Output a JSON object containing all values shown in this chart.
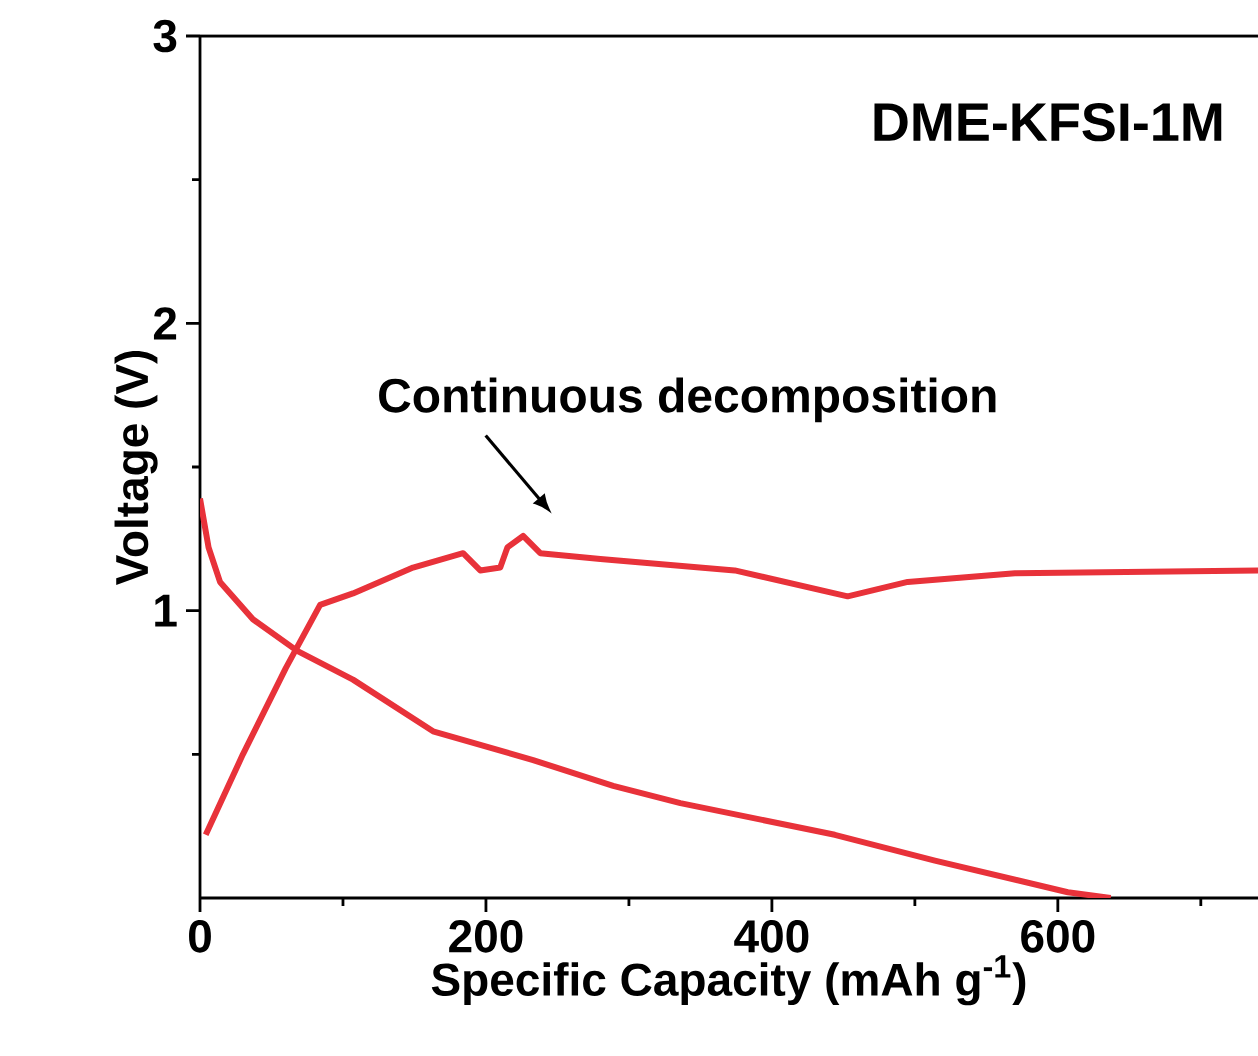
{
  "chart_data": {
    "type": "line",
    "xlabel": "Specific Capacity (mAh g$^{-1}$)",
    "ylabel": "Voltage (V)",
    "xlim": [
      0,
      740
    ],
    "ylim": [
      0,
      3
    ],
    "xticks": [
      0,
      {
        "value": 100,
        "label": null
      },
      200,
      {
        "value": 300,
        "label": null
      },
      400,
      {
        "value": 500,
        "label": null
      },
      600,
      {
        "value": 700,
        "label": null
      }
    ],
    "yticks": [
      {
        "value": 0.5,
        "label": null
      },
      1,
      {
        "value": 1.5,
        "label": null
      },
      2,
      {
        "value": 2.5,
        "label": null
      },
      3
    ],
    "grid": false,
    "annotations": [
      "DME-KFSI-1M",
      "Continuous decomposition"
    ],
    "series": [
      {
        "color": "#e8323a",
        "x": [
          4,
          30,
          60,
          84,
          107,
          149,
          184,
          196,
          210,
          215,
          226,
          238,
          280,
          374,
          453,
          495,
          570,
          740
        ],
        "values": [
          0.22,
          0.5,
          0.8,
          1.02,
          1.06,
          1.15,
          1.2,
          1.14,
          1.15,
          1.22,
          1.26,
          1.2,
          1.18,
          1.14,
          1.05,
          1.1,
          1.13,
          1.14
        ]
      },
      {
        "color": "#e8323a",
        "x": [
          0,
          6,
          14,
          37,
          68,
          107,
          163,
          233,
          289,
          336,
          444,
          514,
          607,
          637
        ],
        "values": [
          1.39,
          1.22,
          1.1,
          0.97,
          0.86,
          0.76,
          0.58,
          0.48,
          0.39,
          0.33,
          0.22,
          0.13,
          0.02,
          0.0
        ]
      }
    ]
  }
}
